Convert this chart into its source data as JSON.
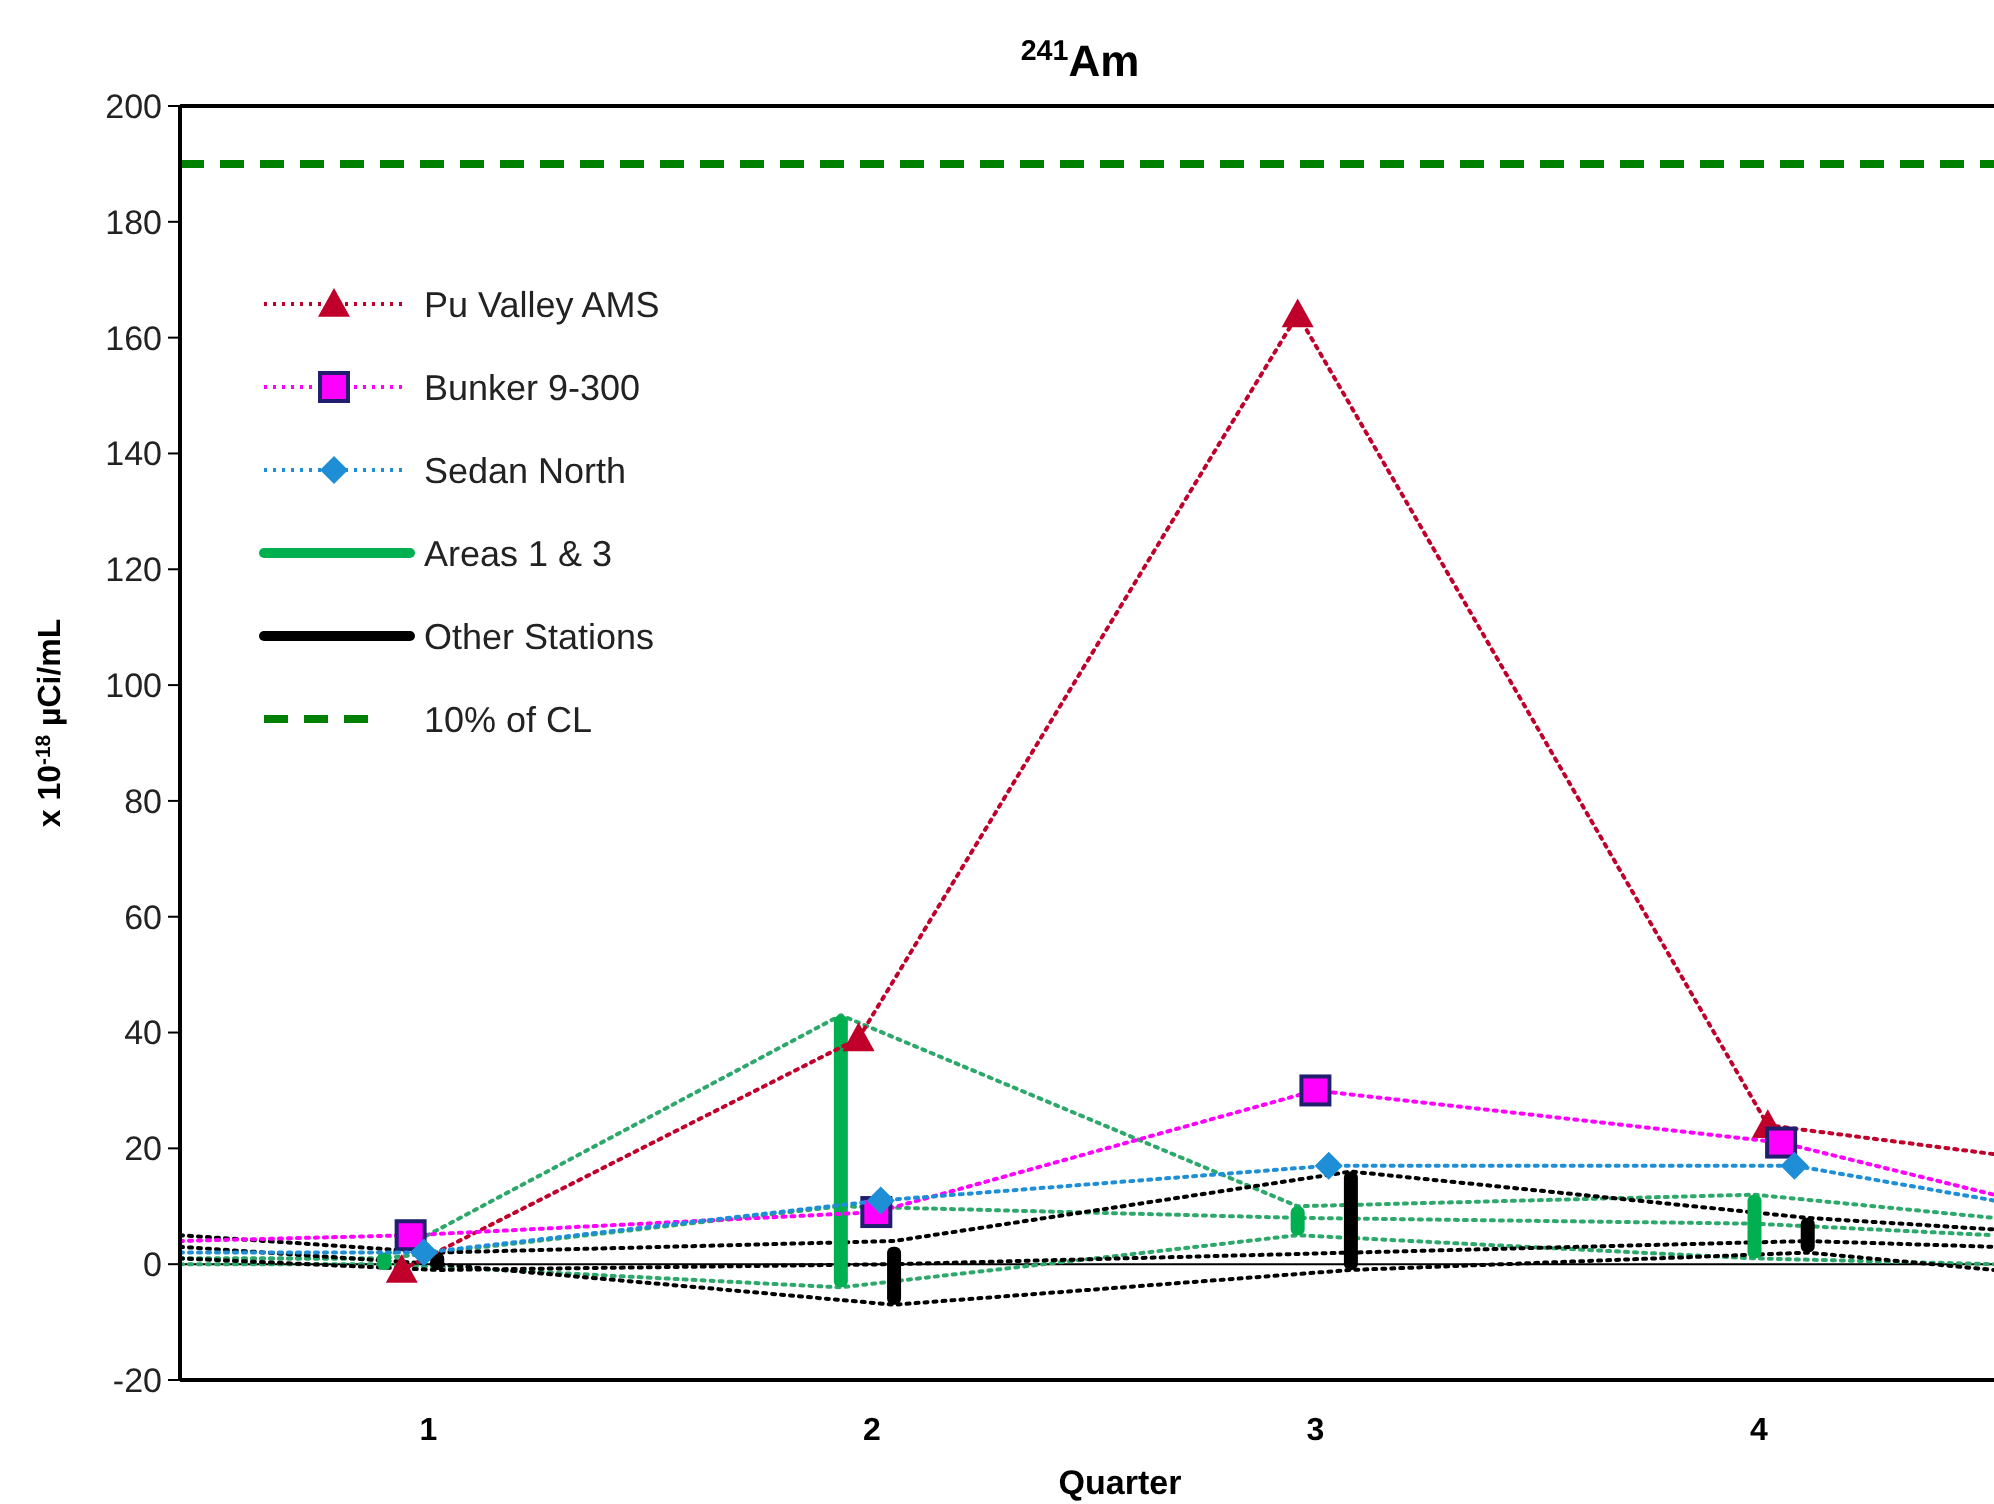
{
  "chart_data": {
    "type": "line",
    "title": "$^{241}$Am",
    "xlabel": "Quarter",
    "ylabel": "x 10$^{-18}$ µCi/mL",
    "xlim": [
      0.44,
      4.53
    ],
    "xticks": [
      1,
      2,
      3,
      4
    ],
    "ylim": [
      -20,
      200
    ],
    "yticks": [
      -20,
      0,
      20,
      40,
      60,
      80,
      100,
      120,
      140,
      160,
      180,
      200
    ],
    "grid": false,
    "legend": "top left",
    "line_style": "dotted",
    "ref_lines": [
      {
        "axis": "y",
        "value": 190,
        "label": "10% of CL",
        "color": "#008000",
        "line_style": "dashed"
      },
      {
        "axis": "y",
        "value": 0,
        "color": "#000000",
        "line_style": "solid"
      }
    ],
    "series": [
      {
        "type": "line",
        "color": "#2ca86a",
        "marker": "none",
        "x": [
          0.44,
          0.9,
          1.93,
          2.96,
          3.99,
          4.53
        ],
        "values": [
          1,
          1,
          43,
          10,
          12,
          8
        ]
      },
      {
        "type": "line",
        "color": "#2ca86a",
        "marker": "none",
        "x": [
          0.44,
          0.9,
          1.93,
          2.96,
          3.99,
          4.53
        ],
        "values": [
          0,
          0,
          -4,
          5,
          1,
          0
        ]
      },
      {
        "type": "line",
        "color": "#2ca86a",
        "marker": "none",
        "x": [
          0.44,
          0.9,
          1.93,
          2.96,
          3.99,
          4.53
        ],
        "values": [
          1,
          1,
          10,
          8,
          7,
          5
        ]
      },
      {
        "type": "line",
        "color": "#000000",
        "marker": "none",
        "x": [
          0.44,
          1.02,
          2.05,
          3.08,
          4.11,
          4.53
        ],
        "values": [
          5,
          2,
          4,
          16,
          8,
          6
        ]
      },
      {
        "type": "line",
        "color": "#000000",
        "marker": "none",
        "x": [
          0.44,
          1.02,
          2.05,
          3.08,
          4.11,
          4.53
        ],
        "values": [
          3,
          0,
          -7,
          -1,
          2,
          -1
        ]
      },
      {
        "type": "line",
        "color": "#000000",
        "marker": "none",
        "x": [
          0.44,
          1.02,
          2.05,
          3.08,
          4.11,
          4.53
        ],
        "values": [
          1,
          -1,
          0,
          2,
          4,
          3
        ]
      },
      {
        "type": "bar",
        "name": "Areas 1 & 3",
        "color": "#00b050",
        "x": [
          0.9,
          1.93,
          2.96,
          3.99
        ],
        "base": [
          -1,
          -4,
          5,
          1
        ],
        "values": [
          3,
          47,
          5,
          11
        ]
      },
      {
        "type": "bar",
        "name": "Other Stations",
        "color": "#000000",
        "x": [
          1.02,
          2.05,
          3.08,
          4.11
        ],
        "base": [
          -1,
          -7,
          -1,
          2
        ],
        "values": [
          3,
          10,
          17,
          6
        ]
      },
      {
        "name": "Pu Valley AMS",
        "color": "#c0002a",
        "marker": "triangle",
        "x": [
          0.94,
          1.97,
          2.96,
          4.02,
          4.53
        ],
        "values": [
          -1,
          39,
          164,
          24,
          19
        ]
      },
      {
        "name": "Bunker 9-300",
        "color": "#ff00ff",
        "marker": "square",
        "x": [
          0.44,
          0.96,
          2.01,
          3.0,
          4.05,
          4.53
        ],
        "values": [
          4,
          5,
          9,
          30,
          21,
          12
        ]
      },
      {
        "name": "Sedan North",
        "color": "#1e8fd6",
        "marker": "diamond",
        "x": [
          0.44,
          0.99,
          2.02,
          3.03,
          4.08,
          4.53
        ],
        "values": [
          2,
          2,
          11,
          17,
          17,
          11
        ]
      }
    ]
  }
}
